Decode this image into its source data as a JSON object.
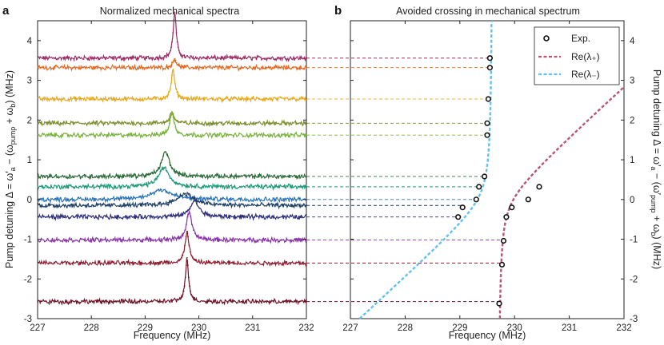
{
  "chart_data": [
    {
      "panel": "a",
      "type": "scatter",
      "title": "Normalized mechanical spectra",
      "xlabel": "Frequency (MHz)",
      "ylabel": "Pump detuning Δ = ω′a − (ωpump + ωb) (MHz)",
      "xlim": [
        227,
        232
      ],
      "ylim": [
        -3,
        4.5
      ],
      "xticks": [
        "227",
        "228",
        "229",
        "230",
        "231",
        "232"
      ],
      "yticks": [
        "-3",
        "-2",
        "-1",
        "0",
        "1",
        "2",
        "3",
        "4"
      ],
      "spectra": [
        {
          "detuning": 3.56,
          "peak_freq": 229.55,
          "peak_height": 1.15,
          "width": 0.035,
          "color": "#9b2a66"
        },
        {
          "detuning": 3.32,
          "peak_freq": 229.55,
          "peak_height": 0.22,
          "width": 0.04,
          "color": "#e06a26"
        },
        {
          "detuning": 2.53,
          "peak_freq": 229.52,
          "peak_height": 0.72,
          "width": 0.04,
          "color": "#e6a81f"
        },
        {
          "detuning": 1.92,
          "peak_freq": 229.5,
          "peak_height": 0.28,
          "width": 0.045,
          "color": "#7d8f2f"
        },
        {
          "detuning": 1.62,
          "peak_freq": 229.5,
          "peak_height": 0.55,
          "width": 0.05,
          "color": "#79b33d"
        },
        {
          "detuning": 0.58,
          "peak_freq": 229.38,
          "peak_height": 0.62,
          "width": 0.09,
          "color": "#2e6b3a"
        },
        {
          "detuning": 0.32,
          "peak_freq": 229.35,
          "peak_height": 0.48,
          "width": 0.12,
          "color": "#1f9a7a"
        },
        {
          "detuning": 0.0,
          "peak_freq": 229.3,
          "peak_height": 0.25,
          "width": 0.22,
          "color": "#2a73b8"
        },
        {
          "detuning": -0.15,
          "peak_freq": 229.75,
          "peak_height": 0.3,
          "width": 0.18,
          "color": "#1e3f66"
        },
        {
          "detuning": -0.44,
          "peak_freq": 229.92,
          "peak_height": 0.4,
          "width": 0.1,
          "color": "#2d2f7a"
        },
        {
          "detuning": -1.02,
          "peak_freq": 229.82,
          "peak_height": 0.7,
          "width": 0.06,
          "color": "#8a34a8"
        },
        {
          "detuning": -1.6,
          "peak_freq": 229.78,
          "peak_height": 0.8,
          "width": 0.045,
          "color": "#8e1c2e"
        },
        {
          "detuning": -2.57,
          "peak_freq": 229.78,
          "peak_height": 1.1,
          "width": 0.035,
          "color": "#6e1226"
        }
      ]
    },
    {
      "panel": "b",
      "type": "line",
      "title": "Avoided crossing in mechanical spectrum",
      "xlabel": "Frequency (MHz)",
      "ylabel": "Pump detuning Δ = ω′a − (ω′pump + ωb) (MHz)",
      "xlim": [
        227,
        232
      ],
      "ylim": [
        -3,
        4.5
      ],
      "xticks": [
        "227",
        "228",
        "229",
        "230",
        "231",
        "232"
      ],
      "yticks": [
        "-3",
        "-2",
        "-1",
        "0",
        "1",
        "2",
        "3",
        "4"
      ],
      "center_freq": 229.7,
      "coupling_g": 0.35,
      "series": [
        {
          "name": "Exp.",
          "marker": "circle",
          "points": [
            [
              229.55,
              3.56
            ],
            [
              229.55,
              3.32
            ],
            [
              229.52,
              2.53
            ],
            [
              229.5,
              1.92
            ],
            [
              229.5,
              1.62
            ],
            [
              229.45,
              0.58
            ],
            [
              229.35,
              0.32
            ],
            [
              230.45,
              0.32
            ],
            [
              229.3,
              0.0
            ],
            [
              230.25,
              0.0
            ],
            [
              229.05,
              -0.2
            ],
            [
              229.95,
              -0.2
            ],
            [
              228.97,
              -0.44
            ],
            [
              229.85,
              -0.44
            ],
            [
              229.8,
              -1.04
            ],
            [
              229.77,
              -1.64
            ],
            [
              229.72,
              -2.62
            ]
          ]
        },
        {
          "name": "Re(λ₊)",
          "color": "#b8567a"
        },
        {
          "name": "Re(λ₋)",
          "color": "#66c0ec"
        }
      ],
      "legend_labels": [
        "Exp.",
        "Re(λ₊)",
        "Re(λ₋)"
      ],
      "legend_position": "top-right"
    }
  ]
}
